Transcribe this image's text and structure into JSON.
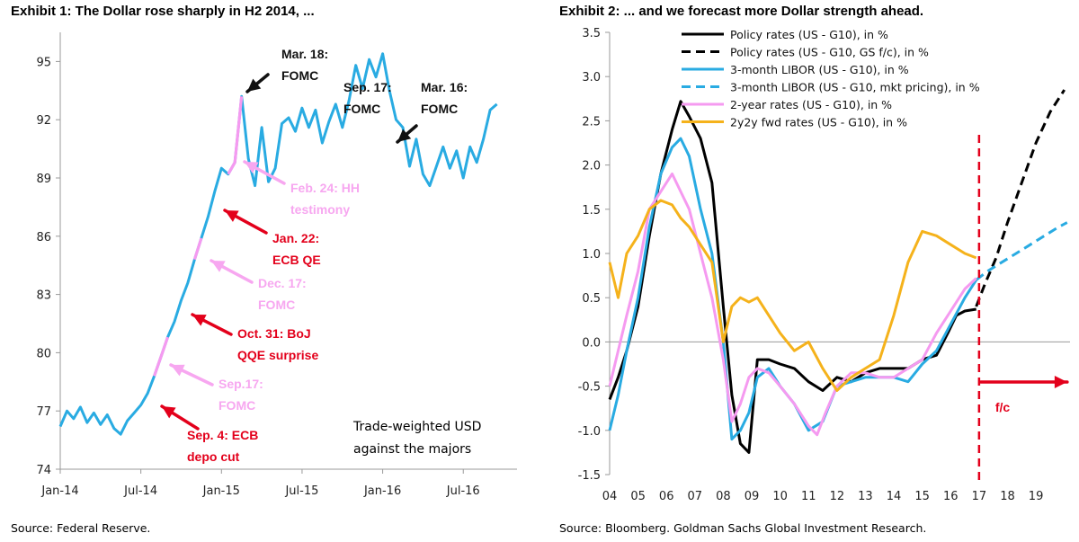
{
  "exhibit1": {
    "title": "Exhibit 1: The Dollar rose sharply in H2 2014, ...",
    "source": "Source: Federal Reserve.",
    "chart_data": {
      "type": "line",
      "x_tick_labels": [
        "Jan-14",
        "Jul-14",
        "Jan-15",
        "Jul-15",
        "Jan-16",
        "Jul-16"
      ],
      "yticks": [
        74,
        77,
        80,
        83,
        86,
        89,
        92,
        95
      ],
      "ylim": [
        74,
        96.5
      ],
      "xlim": [
        0,
        34
      ],
      "series": [
        {
          "color": "#29abe2",
          "x": [
            0,
            0.5,
            1,
            1.5,
            2,
            2.5,
            3,
            3.5,
            4,
            4.5,
            5,
            5.5,
            6,
            6.5,
            7,
            7.5,
            8,
            8.5,
            9,
            9.5,
            10,
            10.5,
            11,
            11.5,
            12,
            12.5,
            13,
            13.5,
            14,
            14.5,
            15,
            15.5,
            16,
            16.5,
            17,
            17.5,
            18,
            18.5,
            19,
            19.5,
            20,
            20.5,
            21,
            21.5,
            22,
            22.5,
            23,
            23.5,
            24,
            24.5,
            25,
            25.5,
            26,
            26.5,
            27,
            27.5,
            28,
            28.5,
            29,
            29.5,
            30,
            30.5,
            31,
            31.5,
            32,
            32.5
          ],
          "y": [
            76.2,
            77.0,
            76.6,
            77.2,
            76.4,
            76.9,
            76.3,
            76.8,
            76.1,
            75.8,
            76.5,
            76.9,
            77.3,
            77.9,
            78.8,
            79.8,
            80.8,
            81.6,
            82.7,
            83.6,
            84.8,
            85.9,
            87.0,
            88.3,
            89.5,
            89.2,
            89.8,
            93.2,
            90.0,
            88.6,
            91.6,
            88.8,
            89.5,
            91.8,
            92.1,
            91.4,
            92.6,
            91.6,
            92.5,
            90.8,
            91.9,
            92.8,
            91.6,
            93.0,
            94.8,
            93.6,
            95.1,
            94.2,
            95.4,
            93.5,
            92.0,
            91.6,
            89.6,
            91.0,
            89.2,
            88.6,
            89.6,
            90.6,
            89.5,
            90.4,
            89.0,
            90.6,
            89.8,
            91.0,
            92.5,
            92.8
          ]
        }
      ],
      "annotations": [
        {
          "text": "Mar. 18:",
          "text2": "FOMC",
          "color": "#111111"
        },
        {
          "text": "Sep. 17:",
          "text2": "FOMC",
          "color": "#111111"
        },
        {
          "text": "Mar. 16:",
          "text2": "FOMC",
          "color": "#111111"
        },
        {
          "text": "Feb. 24: HH",
          "text2": "testimony",
          "color": "#f7a7f0"
        },
        {
          "text": "Jan. 22:",
          "text2": "ECB QE",
          "color": "#e3001b"
        },
        {
          "text": "Dec. 17:",
          "text2": "FOMC",
          "color": "#f7a7f0"
        },
        {
          "text": "Oct. 31: BoJ",
          "text2": "QQE surprise",
          "color": "#e3001b"
        },
        {
          "text": "Sep.17:",
          "text2": "FOMC",
          "color": "#f7a7f0"
        },
        {
          "text": "Sep. 4: ECB",
          "text2": "depo cut",
          "color": "#e3001b"
        }
      ],
      "inset_label": [
        "Trade-weighted USD",
        "against the majors"
      ]
    }
  },
  "exhibit2": {
    "title": "Exhibit 2: ... and we forecast more Dollar strength ahead.",
    "source": "Source: Bloomberg. Goldman Sachs Global Investment Research.",
    "chart_data": {
      "type": "line",
      "x_tick_labels": [
        "04",
        "05",
        "06",
        "07",
        "08",
        "09",
        "10",
        "11",
        "12",
        "13",
        "14",
        "15",
        "16",
        "17",
        "18",
        "19"
      ],
      "xlim": [
        2004,
        2020.2
      ],
      "ylim": [
        -1.5,
        3.5
      ],
      "yticks": [
        -1.5,
        -1.0,
        -0.5,
        0.0,
        0.5,
        1.0,
        1.5,
        2.0,
        2.5,
        3.0,
        3.5
      ],
      "ytick_labels": [
        "-1.5",
        "-1.0",
        "-0.5",
        "0.0",
        "0.5",
        "1.0",
        "1.5",
        "2.0",
        "2.5",
        "3.0",
        "3.5"
      ],
      "forecast_line_x": 2017,
      "forecast_label": "f/c",
      "series": [
        {
          "name": "Policy rates (US - G10), in %",
          "color": "#000000",
          "style": "solid",
          "x": [
            2004,
            2004.3,
            2004.6,
            2005,
            2005.4,
            2005.8,
            2006.2,
            2006.5,
            2006.8,
            2007.2,
            2007.6,
            2008.0,
            2008.3,
            2008.6,
            2008.9,
            2009.2,
            2009.6,
            2010.0,
            2010.5,
            2011.0,
            2011.5,
            2012.0,
            2012.5,
            2013.0,
            2013.5,
            2014.0,
            2014.5,
            2015.0,
            2015.5,
            2015.9,
            2016.2,
            2016.5,
            2016.9
          ],
          "y": [
            -0.65,
            -0.4,
            -0.1,
            0.4,
            1.2,
            1.9,
            2.4,
            2.72,
            2.55,
            2.3,
            1.8,
            0.4,
            -0.6,
            -1.15,
            -1.25,
            -0.2,
            -0.2,
            -0.25,
            -0.3,
            -0.45,
            -0.55,
            -0.4,
            -0.45,
            -0.35,
            -0.3,
            -0.3,
            -0.3,
            -0.2,
            -0.15,
            0.1,
            0.3,
            0.35,
            0.37
          ]
        },
        {
          "name": "Policy rates (US - G10, GS f/c), in %",
          "color": "#000000",
          "style": "dashed",
          "x": [
            2016.9,
            2017.2,
            2017.6,
            2018.0,
            2018.5,
            2019.0,
            2019.5,
            2020.0
          ],
          "y": [
            0.4,
            0.65,
            0.95,
            1.35,
            1.8,
            2.25,
            2.6,
            2.85
          ]
        },
        {
          "name": "3-month LIBOR (US - G10), in %",
          "color": "#29abe2",
          "style": "solid",
          "x": [
            2004,
            2004.3,
            2004.6,
            2005,
            2005.4,
            2005.8,
            2006.2,
            2006.5,
            2006.8,
            2007.2,
            2007.6,
            2008.0,
            2008.3,
            2008.6,
            2008.9,
            2009.2,
            2009.6,
            2010.0,
            2010.5,
            2011.0,
            2011.5,
            2012.0,
            2012.5,
            2013.0,
            2013.5,
            2014.0,
            2014.5,
            2015.0,
            2015.5,
            2016.0,
            2016.5,
            2016.9
          ],
          "y": [
            -1.0,
            -0.6,
            -0.1,
            0.5,
            1.3,
            1.9,
            2.2,
            2.3,
            2.1,
            1.5,
            1.0,
            0.0,
            -1.1,
            -1.0,
            -0.8,
            -0.4,
            -0.3,
            -0.5,
            -0.7,
            -1.0,
            -0.9,
            -0.5,
            -0.45,
            -0.4,
            -0.4,
            -0.4,
            -0.45,
            -0.25,
            -0.1,
            0.2,
            0.5,
            0.7
          ]
        },
        {
          "name": "3-month LIBOR (US - G10, mkt pricing), in %",
          "color": "#29abe2",
          "style": "dashed",
          "x": [
            2016.9,
            2017.3,
            2017.8,
            2018.3,
            2018.8,
            2019.3,
            2019.8,
            2020.1
          ],
          "y": [
            0.7,
            0.8,
            0.9,
            1.0,
            1.1,
            1.2,
            1.3,
            1.35
          ]
        },
        {
          "name": "2-year rates (US - G10), in %",
          "color": "#f59af0",
          "style": "solid",
          "x": [
            2004,
            2004.3,
            2004.6,
            2005,
            2005.4,
            2005.8,
            2006.2,
            2006.5,
            2006.8,
            2007.2,
            2007.6,
            2008.0,
            2008.3,
            2008.6,
            2008.9,
            2009.2,
            2009.6,
            2010.0,
            2010.5,
            2011.0,
            2011.3,
            2011.6,
            2012.0,
            2012.5,
            2013.0,
            2013.5,
            2014.0,
            2014.5,
            2015.0,
            2015.5,
            2016.0,
            2016.5,
            2016.9
          ],
          "y": [
            -0.5,
            -0.1,
            0.3,
            0.8,
            1.5,
            1.7,
            1.9,
            1.7,
            1.5,
            1.0,
            0.5,
            -0.2,
            -0.9,
            -0.7,
            -0.4,
            -0.3,
            -0.35,
            -0.5,
            -0.7,
            -0.95,
            -1.05,
            -0.8,
            -0.5,
            -0.35,
            -0.35,
            -0.4,
            -0.4,
            -0.3,
            -0.2,
            0.1,
            0.35,
            0.6,
            0.72
          ]
        },
        {
          "name": "2y2y fwd rates (US - G10), in %",
          "color": "#f5b21b",
          "style": "solid",
          "x": [
            2004,
            2004.3,
            2004.6,
            2005,
            2005.4,
            2005.8,
            2006.2,
            2006.5,
            2006.8,
            2007.2,
            2007.6,
            2008.0,
            2008.3,
            2008.6,
            2008.9,
            2009.2,
            2009.6,
            2010.0,
            2010.5,
            2011.0,
            2011.5,
            2012.0,
            2012.5,
            2013.0,
            2013.5,
            2014.0,
            2014.5,
            2015.0,
            2015.5,
            2016.0,
            2016.5,
            2016.9
          ],
          "y": [
            0.9,
            0.5,
            1.0,
            1.2,
            1.5,
            1.6,
            1.55,
            1.4,
            1.3,
            1.1,
            0.9,
            0.0,
            0.4,
            0.5,
            0.45,
            0.5,
            0.3,
            0.1,
            -0.1,
            0.0,
            -0.3,
            -0.55,
            -0.4,
            -0.3,
            -0.2,
            0.3,
            0.9,
            1.25,
            1.2,
            1.1,
            1.0,
            0.95
          ]
        }
      ]
    }
  }
}
